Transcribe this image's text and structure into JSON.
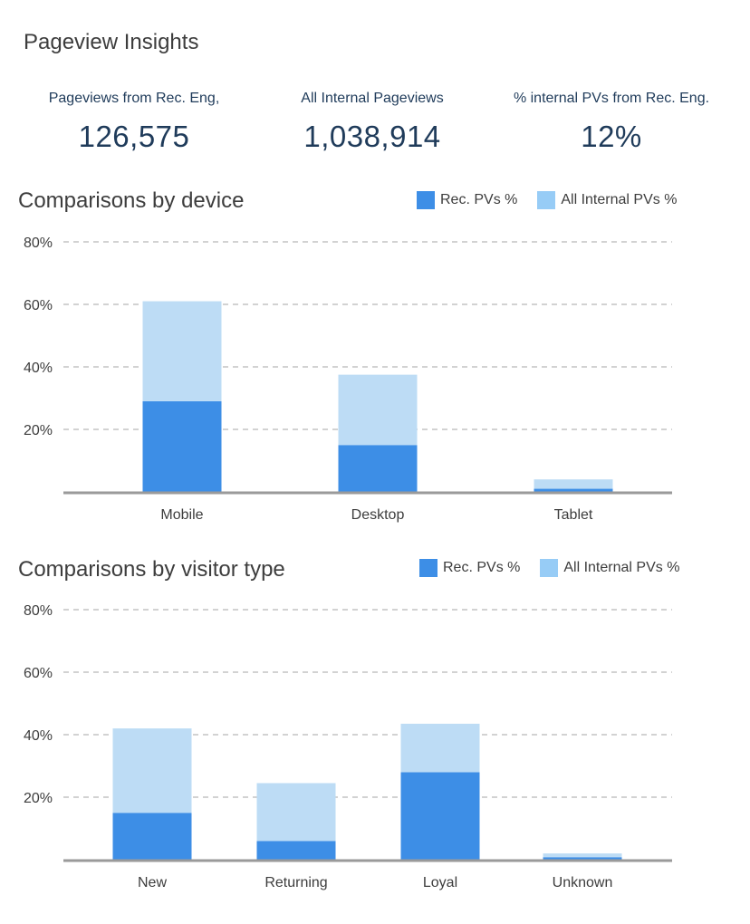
{
  "page": {
    "title": "Pageview Insights"
  },
  "kpis": [
    {
      "label": "Pageviews from Rec. Eng,",
      "value": "126,575"
    },
    {
      "label": "All Internal Pageviews",
      "value": "1,038,914"
    },
    {
      "label": "% internal PVs from Rec. Eng.",
      "value": "12%"
    }
  ],
  "colors": {
    "rec": "#3d8ee6",
    "all": "#bddcf5",
    "grid": "#c4c4c4",
    "axis": "#9a9a9a"
  },
  "chart_data": [
    {
      "type": "bar",
      "stacked": true,
      "title": "Comparisons by device",
      "categories": [
        "Mobile",
        "Desktop",
        "Tablet"
      ],
      "series": [
        {
          "name": "Rec. PVs %",
          "values": [
            29,
            15,
            1
          ]
        },
        {
          "name": "All Internal PVs %",
          "values": [
            32,
            22.5,
            3
          ]
        }
      ],
      "ylim": [
        0,
        80
      ],
      "yticks": [
        20,
        40,
        60,
        80
      ],
      "ytick_labels": [
        "20%",
        "40%",
        "60%",
        "80%"
      ],
      "grid": true,
      "legend": "top-right"
    },
    {
      "type": "bar",
      "stacked": true,
      "title": "Comparisons by visitor type",
      "categories": [
        "New",
        "Returning",
        "Loyal",
        "Unknown"
      ],
      "series": [
        {
          "name": "Rec. PVs %",
          "values": [
            15,
            6,
            28,
            0.8
          ]
        },
        {
          "name": "All Internal PVs %",
          "values": [
            27,
            18.5,
            15.5,
            1.2
          ]
        }
      ],
      "ylim": [
        0,
        80
      ],
      "yticks": [
        20,
        40,
        60,
        80
      ],
      "ytick_labels": [
        "20%",
        "40%",
        "60%",
        "80%"
      ],
      "grid": true,
      "legend": "top-right"
    }
  ]
}
